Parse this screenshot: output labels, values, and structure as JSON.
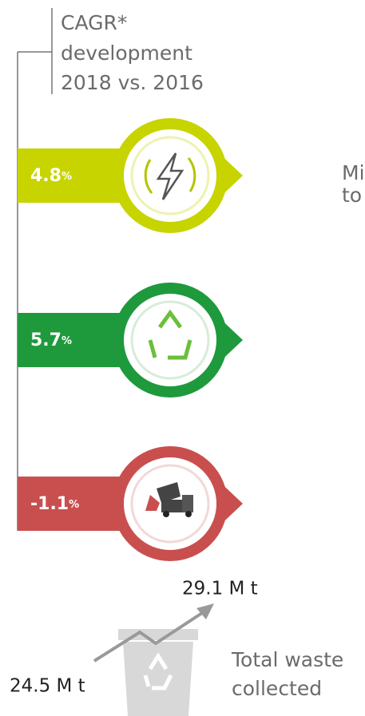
{
  "header": {
    "lines": [
      "CAGR*",
      "development",
      "2018 vs. 2016"
    ]
  },
  "items": [
    {
      "value": "4.8",
      "unit": "%"
    },
    {
      "value": "5.7",
      "unit": "%"
    },
    {
      "value": "-1.1",
      "unit": "%"
    }
  ],
  "side_text": [
    "Mi",
    "to"
  ],
  "total": {
    "end": "29.1 M t",
    "start": "24.5 M t",
    "label": [
      "Total waste",
      "collected"
    ]
  }
}
